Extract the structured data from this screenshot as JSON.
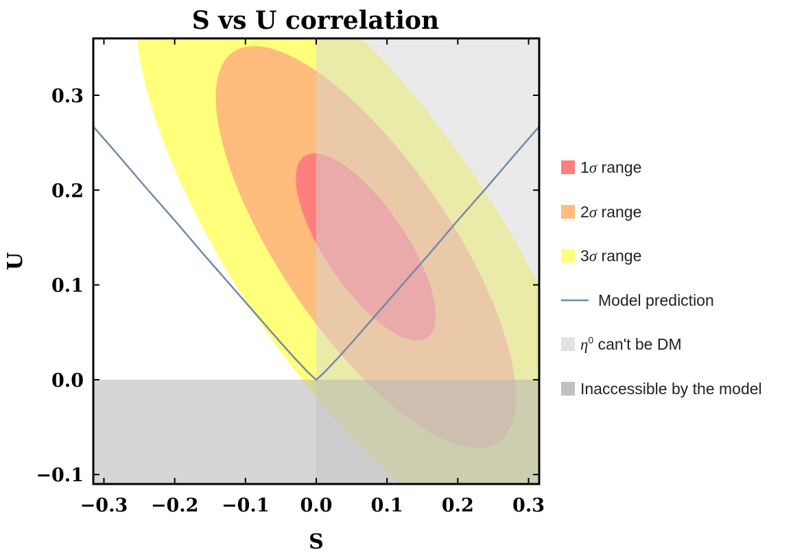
{
  "chart_data": {
    "type": "area",
    "title": "S vs U correlation",
    "xlabel": "S",
    "ylabel": "U",
    "xlim": [
      -0.315,
      0.315
    ],
    "ylim": [
      -0.11,
      0.36
    ],
    "xticks": [
      -0.3,
      -0.2,
      -0.1,
      0.0,
      0.1,
      0.2,
      0.3
    ],
    "xtick_labels": [
      "−0.3",
      "−0.2",
      "−0.1",
      "0.0",
      "0.1",
      "0.2",
      "0.3"
    ],
    "yticks": [
      -0.1,
      0.0,
      0.1,
      0.2,
      0.3
    ],
    "ytick_labels": [
      "−0.1",
      "0.0",
      "0.1",
      "0.2",
      "0.3"
    ],
    "ellipse_center": [
      0.07,
      0.14
    ],
    "ellipses": [
      {
        "name_prefix": "1",
        "name_symbol": "σ",
        "name_suffix": " range",
        "semi_major": 0.13,
        "semi_minor": 0.051,
        "color": "#ff7f7f"
      },
      {
        "name_prefix": "2",
        "name_symbol": "σ",
        "name_suffix": " range",
        "semi_major": 0.28,
        "semi_minor": 0.107,
        "color": "#ffbc7c"
      },
      {
        "name_prefix": "3",
        "name_symbol": "σ",
        "name_suffix": " range",
        "semi_major": 0.43,
        "semi_minor": 0.163,
        "color": "#ffff7c"
      }
    ],
    "model_prediction": {
      "name": "Model prediction",
      "color": "#7488a8",
      "x": [
        -0.315,
        -0.28,
        -0.24,
        -0.2,
        -0.16,
        -0.12,
        -0.08,
        -0.05,
        -0.03,
        -0.01,
        0.0,
        0.01,
        0.03,
        0.05,
        0.08,
        0.12,
        0.16,
        0.2,
        0.24,
        0.28,
        0.315
      ],
      "y": [
        0.267,
        0.237,
        0.202,
        0.168,
        0.133,
        0.0988,
        0.0646,
        0.039,
        0.0224,
        0.0066,
        0.0,
        0.0066,
        0.0224,
        0.039,
        0.0646,
        0.0988,
        0.133,
        0.168,
        0.202,
        0.237,
        0.267
      ]
    },
    "regions": [
      {
        "name_symbol": "η",
        "name_sup": "0",
        "name_suffix": " can't be DM",
        "x_range": [
          0.0,
          0.315
        ],
        "y_range": [
          -0.11,
          0.36
        ],
        "color": "#d6d6d6"
      },
      {
        "name": "Inaccessible by the model",
        "x_range": [
          -0.315,
          0.315
        ],
        "y_range": [
          -0.11,
          0.0
        ],
        "color": "#b4b4b4"
      }
    ],
    "grid": false,
    "legend_position": "right"
  }
}
